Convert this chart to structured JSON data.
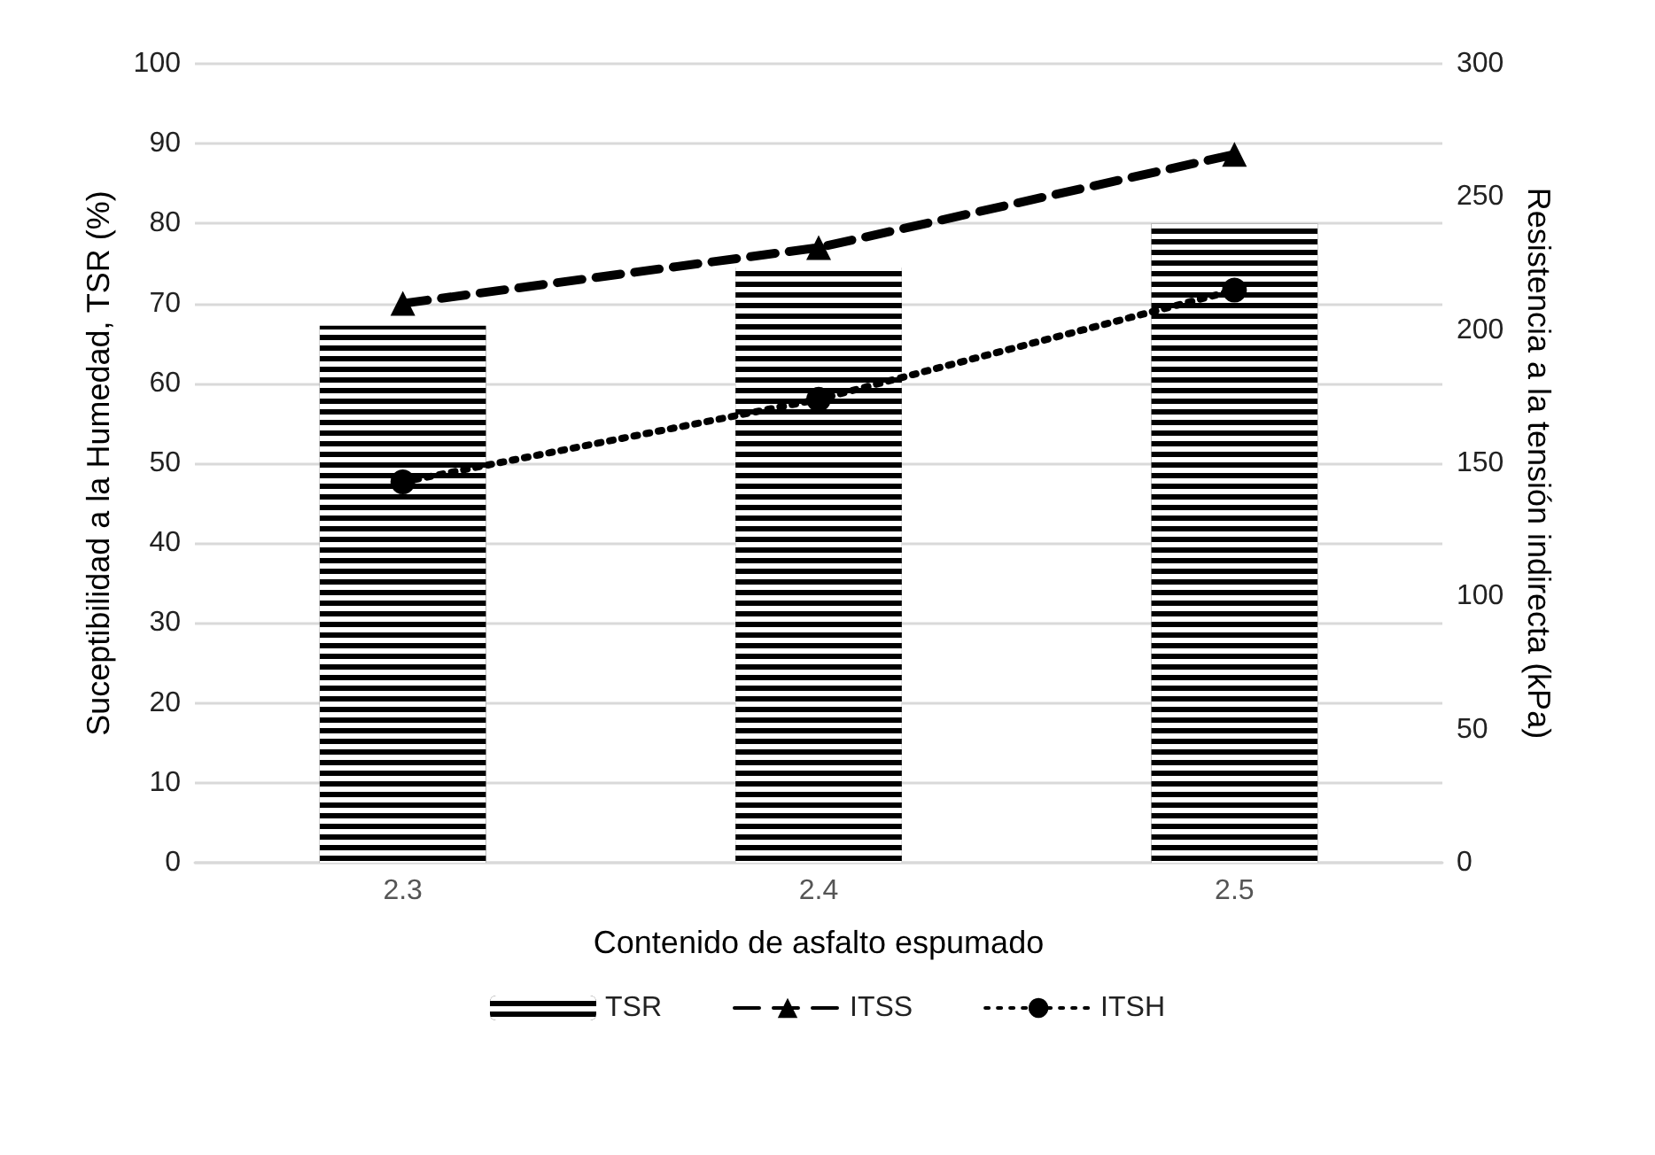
{
  "chart_data": {
    "type": "bar",
    "xlabel": "Contenido de asfalto espumado",
    "ylabel": "Suceptibilidad a la Humedad, TSR (%)",
    "y2label": "Resistencia a la tensión indirecta (kPa)",
    "categories": [
      "2.3",
      "2.4",
      "2.5"
    ],
    "series": [
      {
        "name": "TSR",
        "type": "bar",
        "color": "#000000",
        "values": [
          67.2,
          74.5,
          80
        ]
      },
      {
        "name": "ITSS",
        "type": "line",
        "axis": "y2",
        "color": "#000000",
        "marker": "triangle",
        "line_style": "dashed",
        "values": [
          210,
          231,
          266
        ]
      },
      {
        "name": "ITSH",
        "type": "line",
        "axis": "y2",
        "color": "#000000",
        "marker": "circle",
        "line_style": "dotted",
        "values": [
          143,
          174,
          215
        ]
      }
    ],
    "ylim": [
      0,
      100
    ],
    "yticks": [
      0,
      10,
      20,
      30,
      40,
      50,
      60,
      70,
      80,
      90,
      100
    ],
    "y2lim": [
      0,
      300
    ],
    "y2ticks": [
      0,
      50,
      100,
      150,
      200,
      250,
      300
    ],
    "grid": "y",
    "legend": "bottom"
  }
}
